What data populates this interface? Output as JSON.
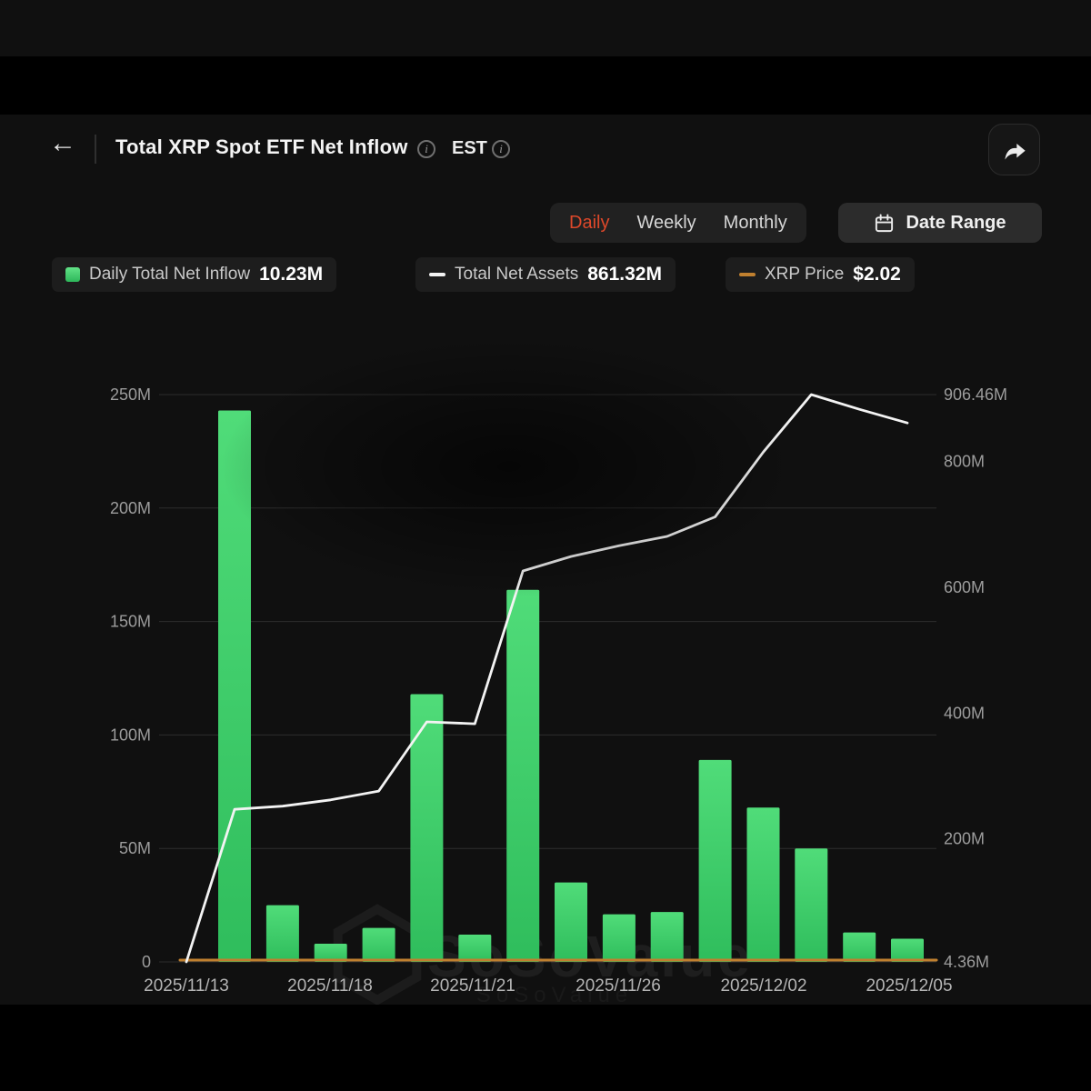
{
  "header": {
    "title": "Total XRP Spot ETF Net Inflow",
    "timezone": "EST"
  },
  "icons": {
    "back": "←",
    "info": "i"
  },
  "controls": {
    "tabs": [
      {
        "label": "Daily",
        "active": true
      },
      {
        "label": "Weekly",
        "active": false
      },
      {
        "label": "Monthly",
        "active": false
      }
    ],
    "date_range_label": "Date Range"
  },
  "legend": [
    {
      "label": "Daily Total Net Inflow",
      "value": "10.23M",
      "swatch": "green-bar"
    },
    {
      "label": "Total Net Assets",
      "value": "861.32M",
      "swatch": "white-line"
    },
    {
      "label": "XRP Price",
      "value": "$2.02",
      "swatch": "orange-line"
    }
  ],
  "watermark": "SoSoValue",
  "colors": {
    "accent_green": "#3cd269",
    "accent_orange": "#c0802f",
    "tab_active": "#de482a",
    "line_white": "#f3f3f3",
    "grid": "#2d2d2d"
  },
  "chart_data": {
    "type": "bar",
    "title": "Total XRP Spot ETF Net Inflow",
    "grid": true,
    "legend_position": "top",
    "x_tick_labels": [
      "2025/11/13",
      "2025/11/18",
      "2025/11/21",
      "2025/11/26",
      "2025/12/02",
      "2025/12/05"
    ],
    "left_axis": {
      "min": 0,
      "max": 250,
      "unit": "M",
      "values": [
        0,
        50,
        100,
        150,
        200,
        250
      ],
      "tick_labels": [
        "0",
        "50M",
        "100M",
        "150M",
        "200M",
        "250M"
      ]
    },
    "right_axis": {
      "min": 4.36,
      "max": 906.46,
      "unit": "M",
      "ticks": [
        {
          "label": "906.46M",
          "value": 906.46
        },
        {
          "label": "800M",
          "value": 800
        },
        {
          "label": "600M",
          "value": 600
        },
        {
          "label": "400M",
          "value": 400
        },
        {
          "label": "200M",
          "value": 200
        },
        {
          "label": "4.36M",
          "value": 4.36
        }
      ]
    },
    "bars": {
      "name": "Daily Total Net Inflow",
      "unit": "M",
      "latest": "10.23M",
      "values": [
        243,
        25,
        8,
        15,
        118,
        12,
        164,
        35,
        21,
        22,
        89,
        68,
        50,
        13,
        10.23
      ]
    },
    "assets_line": {
      "name": "Total Net Assets",
      "unit": "M",
      "latest": "861.32M",
      "values": [
        4.36,
        247,
        252,
        262,
        276,
        386,
        383,
        626,
        649,
        666,
        681,
        712,
        815,
        906.46,
        883,
        861.32
      ]
    },
    "price_line": {
      "name": "XRP Price",
      "latest": "$2.02",
      "value": 2.02
    }
  }
}
